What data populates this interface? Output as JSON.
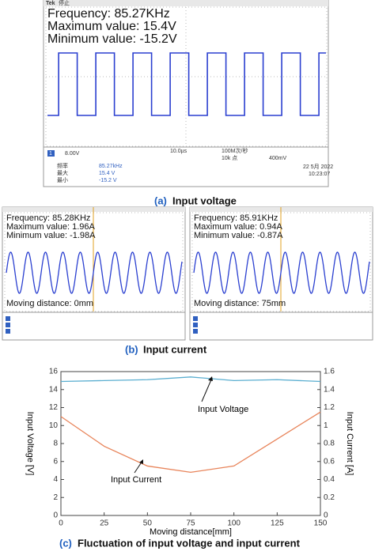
{
  "panel_a": {
    "brand": "Tek",
    "status": "停止",
    "frequency": "Frequency: 85.27KHz",
    "maximum": "Maximum value: 15.4V",
    "minimum": "Minimum value: -15.2V",
    "channel": "1",
    "scale": "8.00V",
    "timebase": "10.0µs",
    "rate": "100M次/秒",
    "points": "10k 点",
    "trigger": "400mV",
    "readouts": [
      [
        "频率",
        "85.27kHz"
      ],
      [
        "最大",
        "15.4 V"
      ],
      [
        "最小",
        "-15.2 V"
      ]
    ],
    "date": "22 5月 2022",
    "time": "10:23:07",
    "caption_label": "(a)",
    "caption": "Input voltage"
  },
  "panel_b": {
    "screens": [
      {
        "frequency": "Frequency: 85.28KHz",
        "maximum": "Maximum value: 1.96A",
        "minimum": "Minimum value: -1.98A",
        "distance": "Moving distance: 0mm"
      },
      {
        "frequency": "Frequency: 85.91KHz",
        "maximum": "Maximum value: 0.94A",
        "minimum": "Minimum value: -0.87A",
        "distance": "Moving distance: 75mm"
      }
    ],
    "caption_label": "(b)",
    "caption": "Input current"
  },
  "chart_data": {
    "type": "line",
    "caption_label": "(c)",
    "title": "Fluctuation of input voltage and input current",
    "x_label": "Moving distance[mm]",
    "y_label": "Input Voltage [V]",
    "y2_label": "Input Current [A]",
    "x": [
      0,
      25,
      50,
      75,
      100,
      125,
      150
    ],
    "xlim": [
      0,
      150
    ],
    "xticks": [
      0,
      25,
      50,
      75,
      100,
      125,
      150
    ],
    "ylim": [
      0,
      16
    ],
    "yticks": [
      0,
      2,
      4,
      6,
      8,
      10,
      12,
      14,
      16
    ],
    "y2lim": [
      0,
      1.6
    ],
    "y2ticks": [
      0,
      0.2,
      0.4,
      0.6,
      0.8,
      1,
      1.2,
      1.4,
      1.6
    ],
    "series": [
      {
        "name": "Input Voltage",
        "color": "#5aaed0",
        "values": [
          14.9,
          15.0,
          15.1,
          15.4,
          15.0,
          15.1,
          14.9
        ]
      },
      {
        "name": "Input Current",
        "color": "#e8845a",
        "axis": "y2",
        "values": [
          1.1,
          0.77,
          0.55,
          0.48,
          0.55,
          0.85,
          1.15
        ]
      }
    ]
  }
}
